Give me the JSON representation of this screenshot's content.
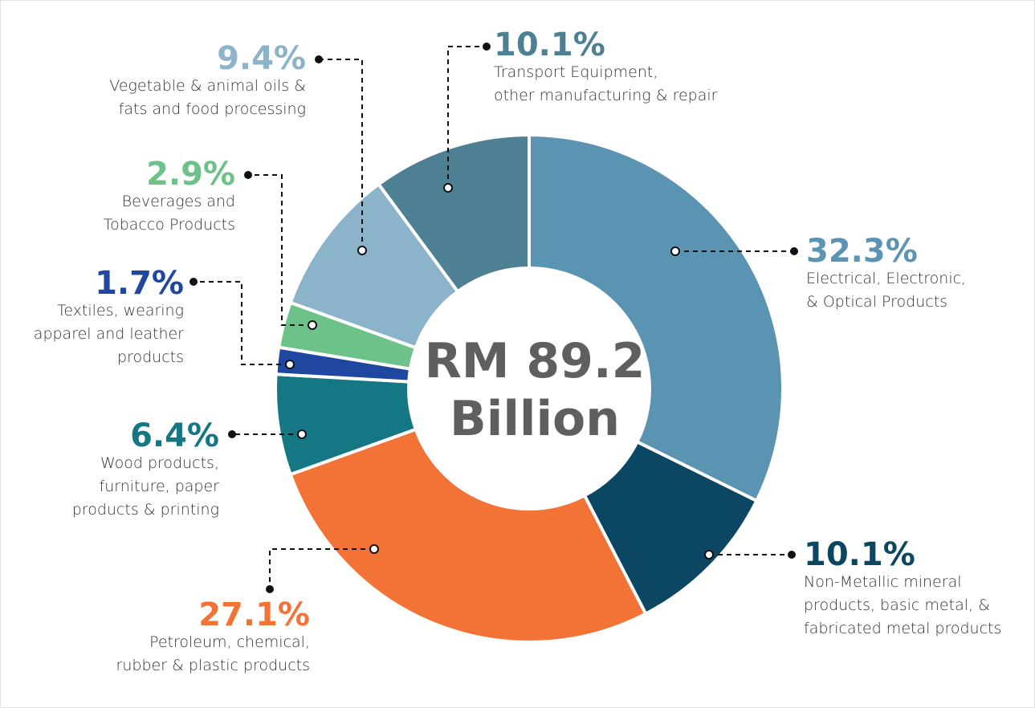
{
  "chart_data": {
    "type": "pie",
    "center_label": "RM 89.2\nBillion",
    "categories": [
      "Electrical, Electronic,\n& Optical Products",
      "Non-Metallic mineral\nproducts, basic metal, &\nfabricated metal products",
      "Petroleum, chemical,\nrubber & plastic products",
      "Wood products,\nfurniture, paper\nproducts & printing",
      "Textiles, wearing\napparel and leather\nproducts",
      "Beverages and\nTobacco Products",
      "Vegetable & animal oils &\nfats and food processing",
      "Transport Equipment,\nother manufacturing & repair"
    ],
    "values": [
      32.3,
      10.1,
      27.1,
      6.4,
      1.7,
      2.9,
      9.4,
      10.1
    ],
    "value_labels": [
      "32.3%",
      "10.1%",
      "27.1%",
      "6.4%",
      "1.7%",
      "2.9%",
      "9.4%",
      "10.1%"
    ],
    "colors": [
      "#5b93b3",
      "#0b4762",
      "#f37236",
      "#157784",
      "#1f47a0",
      "#6cc288",
      "#8bb3c9",
      "#4e8094"
    ]
  }
}
